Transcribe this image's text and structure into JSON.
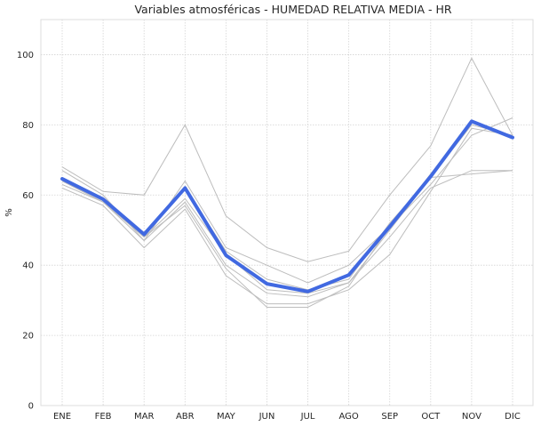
{
  "chart_data": {
    "type": "line",
    "title": "Variables atmosféricas - HUMEDAD RELATIVA MEDIA - HR",
    "xlabel": "",
    "ylabel": "%",
    "categories": [
      "ENE",
      "FEB",
      "MAR",
      "ABR",
      "MAY",
      "JUN",
      "JUL",
      "AGO",
      "SEP",
      "OCT",
      "NOV",
      "DIC"
    ],
    "yticks": [
      0,
      20,
      40,
      60,
      80,
      100
    ],
    "ylim": [
      0,
      110
    ],
    "grid": true,
    "colors": {
      "background_series": "#bdbdbd",
      "mean_series": "#4169e1"
    },
    "series": [
      {
        "values": [
          68,
          61,
          60,
          80,
          54,
          45,
          41,
          44,
          60,
          74,
          99,
          77
        ]
      },
      {
        "values": [
          67,
          60,
          47,
          64,
          45,
          40,
          35,
          40,
          51,
          63,
          77,
          82
        ]
      },
      {
        "values": [
          65,
          59,
          49,
          62,
          44,
          36,
          33,
          36,
          52,
          65,
          66,
          67
        ]
      },
      {
        "values": [
          64,
          58,
          48,
          59,
          43,
          33,
          32,
          35,
          48,
          62,
          67,
          67
        ]
      },
      {
        "values": [
          63,
          58,
          47,
          58,
          40,
          32,
          31,
          35,
          50,
          65,
          80,
          77
        ]
      },
      {
        "values": [
          62,
          57,
          45,
          56,
          37,
          29,
          29,
          33,
          43,
          61,
          79,
          77
        ]
      },
      {
        "values": [
          64,
          58,
          48,
          57,
          39,
          28,
          28,
          34,
          51,
          66,
          81,
          76
        ]
      }
    ],
    "mean_series": {
      "values": [
        64.6,
        58.8,
        48.8,
        62.0,
        42.8,
        34.7,
        32.5,
        37.2,
        51.0,
        65.3,
        81.0,
        76.4
      ]
    }
  }
}
